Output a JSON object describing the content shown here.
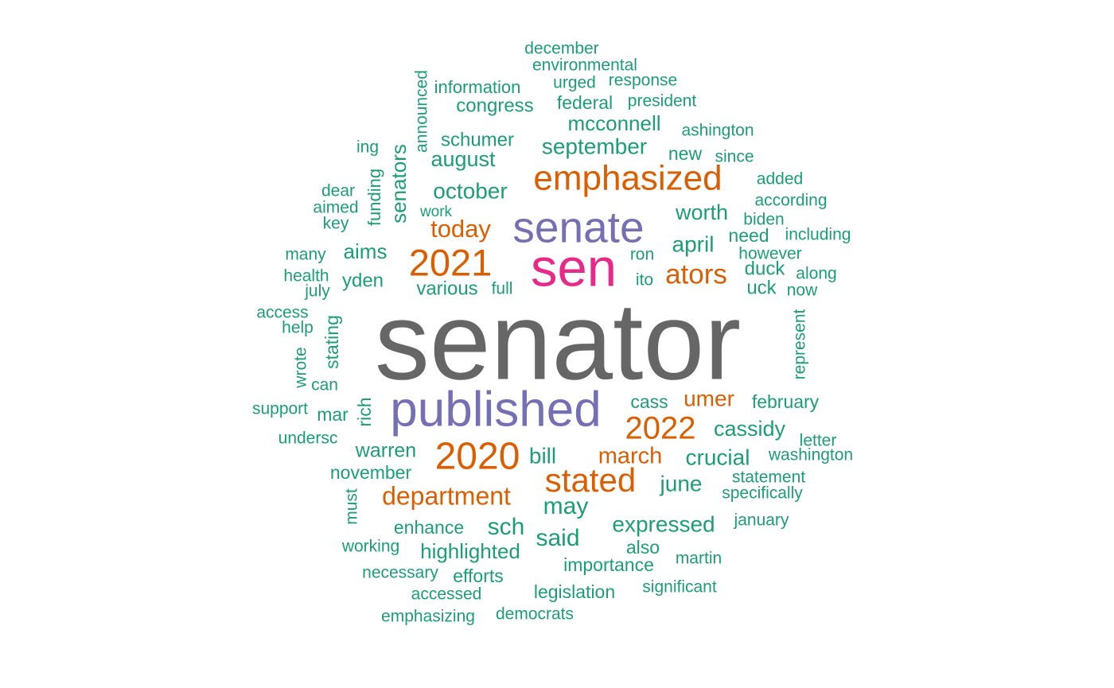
{
  "chart_data": {
    "type": "wordcloud",
    "title": "",
    "colors": {
      "top": "#666666",
      "second": "#e7298a",
      "third": "#7570b3",
      "fourth": "#d95f02",
      "rest": "#1b9e77"
    },
    "words": [
      {
        "text": "senator",
        "color": "#666666",
        "tier": 1
      },
      {
        "text": "sen",
        "color": "#e7298a",
        "tier": 2
      },
      {
        "text": "senate",
        "color": "#7570b3",
        "tier": 3
      },
      {
        "text": "published",
        "color": "#7570b3",
        "tier": 3
      },
      {
        "text": "emphasized",
        "color": "#d95f02",
        "tier": 4
      },
      {
        "text": "2021",
        "color": "#d95f02",
        "tier": 4
      },
      {
        "text": "2020",
        "color": "#d95f02",
        "tier": 4
      },
      {
        "text": "stated",
        "color": "#d95f02",
        "tier": 4
      },
      {
        "text": "2022",
        "color": "#d95f02",
        "tier": 4
      },
      {
        "text": "ators",
        "color": "#d95f02",
        "tier": 4
      },
      {
        "text": "department",
        "color": "#d95f02",
        "tier": 4
      },
      {
        "text": "today",
        "color": "#d95f02",
        "tier": 4
      },
      {
        "text": "march",
        "color": "#d95f02",
        "tier": 4
      },
      {
        "text": "umer",
        "color": "#d95f02",
        "tier": 4
      },
      {
        "text": "september",
        "color": "#1b9e77",
        "tier": 5
      },
      {
        "text": "october",
        "color": "#1b9e77",
        "tier": 5
      },
      {
        "text": "senators",
        "color": "#1b9e77",
        "tier": 5
      },
      {
        "text": "april",
        "color": "#1b9e77",
        "tier": 5
      },
      {
        "text": "worth",
        "color": "#1b9e77",
        "tier": 5
      },
      {
        "text": "expressed",
        "color": "#1b9e77",
        "tier": 5
      },
      {
        "text": "may",
        "color": "#1b9e77",
        "tier": 5
      },
      {
        "text": "sch",
        "color": "#1b9e77",
        "tier": 5
      },
      {
        "text": "said",
        "color": "#1b9e77",
        "tier": 5
      },
      {
        "text": "june",
        "color": "#1b9e77",
        "tier": 5
      },
      {
        "text": "crucial",
        "color": "#1b9e77",
        "tier": 5
      },
      {
        "text": "bill",
        "color": "#1b9e77",
        "tier": 5
      },
      {
        "text": "cassidy",
        "color": "#1b9e77",
        "tier": 5
      },
      {
        "text": "august",
        "color": "#1b9e77",
        "tier": 5
      },
      {
        "text": "mcconnell",
        "color": "#1b9e77",
        "tier": 5
      },
      {
        "text": "aims",
        "color": "#1b9e77",
        "tier": 5
      },
      {
        "text": "warren",
        "color": "#1b9e77",
        "tier": 5
      },
      {
        "text": "highlighted",
        "color": "#1b9e77",
        "tier": 5
      },
      {
        "text": "various",
        "color": "#1b9e77",
        "tier": 6
      },
      {
        "text": "congress",
        "color": "#1b9e77",
        "tier": 6
      },
      {
        "text": "schumer",
        "color": "#1b9e77",
        "tier": 6
      },
      {
        "text": "yden",
        "color": "#1b9e77",
        "tier": 6
      },
      {
        "text": "duck",
        "color": "#1b9e77",
        "tier": 6
      },
      {
        "text": "uck",
        "color": "#1b9e77",
        "tier": 6
      },
      {
        "text": "federal",
        "color": "#1b9e77",
        "tier": 6
      },
      {
        "text": "november",
        "color": "#1b9e77",
        "tier": 6
      },
      {
        "text": "february",
        "color": "#1b9e77",
        "tier": 6
      },
      {
        "text": "importance",
        "color": "#1b9e77",
        "tier": 6
      },
      {
        "text": "legislation",
        "color": "#1b9e77",
        "tier": 6
      },
      {
        "text": "enhance",
        "color": "#1b9e77",
        "tier": 6
      },
      {
        "text": "efforts",
        "color": "#1b9e77",
        "tier": 6
      },
      {
        "text": "stating",
        "color": "#1b9e77",
        "tier": 6
      },
      {
        "text": "rich",
        "color": "#1b9e77",
        "tier": 6
      },
      {
        "text": "cass",
        "color": "#1b9e77",
        "tier": 6
      },
      {
        "text": "need",
        "color": "#1b9e77",
        "tier": 6
      },
      {
        "text": "new",
        "color": "#1b9e77",
        "tier": 6
      },
      {
        "text": "also",
        "color": "#1b9e77",
        "tier": 6
      },
      {
        "text": "mar",
        "color": "#1b9e77",
        "tier": 6
      },
      {
        "text": "funding",
        "color": "#1b9e77",
        "tier": 7
      },
      {
        "text": "announced",
        "color": "#1b9e77",
        "tier": 7
      },
      {
        "text": "information",
        "color": "#1b9e77",
        "tier": 7
      },
      {
        "text": "urged",
        "color": "#1b9e77",
        "tier": 7
      },
      {
        "text": "response",
        "color": "#1b9e77",
        "tier": 7
      },
      {
        "text": "environmental",
        "color": "#1b9e77",
        "tier": 7
      },
      {
        "text": "december",
        "color": "#1b9e77",
        "tier": 7
      },
      {
        "text": "president",
        "color": "#1b9e77",
        "tier": 7
      },
      {
        "text": "ashington",
        "color": "#1b9e77",
        "tier": 7
      },
      {
        "text": "since",
        "color": "#1b9e77",
        "tier": 7
      },
      {
        "text": "added",
        "color": "#1b9e77",
        "tier": 7
      },
      {
        "text": "according",
        "color": "#1b9e77",
        "tier": 7
      },
      {
        "text": "biden",
        "color": "#1b9e77",
        "tier": 7
      },
      {
        "text": "including",
        "color": "#1b9e77",
        "tier": 7
      },
      {
        "text": "however",
        "color": "#1b9e77",
        "tier": 7
      },
      {
        "text": "along",
        "color": "#1b9e77",
        "tier": 7
      },
      {
        "text": "now",
        "color": "#1b9e77",
        "tier": 7
      },
      {
        "text": "ron",
        "color": "#1b9e77",
        "tier": 7
      },
      {
        "text": "ito",
        "color": "#1b9e77",
        "tier": 7
      },
      {
        "text": "full",
        "color": "#1b9e77",
        "tier": 7
      },
      {
        "text": "represent",
        "color": "#1b9e77",
        "tier": 7
      },
      {
        "text": "letter",
        "color": "#1b9e77",
        "tier": 7
      },
      {
        "text": "washington",
        "color": "#1b9e77",
        "tier": 7
      },
      {
        "text": "statement",
        "color": "#1b9e77",
        "tier": 7
      },
      {
        "text": "specifically",
        "color": "#1b9e77",
        "tier": 7
      },
      {
        "text": "january",
        "color": "#1b9e77",
        "tier": 7
      },
      {
        "text": "martin",
        "color": "#1b9e77",
        "tier": 7
      },
      {
        "text": "significant",
        "color": "#1b9e77",
        "tier": 7
      },
      {
        "text": "democrats",
        "color": "#1b9e77",
        "tier": 7
      },
      {
        "text": "emphasizing",
        "color": "#1b9e77",
        "tier": 7
      },
      {
        "text": "accessed",
        "color": "#1b9e77",
        "tier": 7
      },
      {
        "text": "necessary",
        "color": "#1b9e77",
        "tier": 7
      },
      {
        "text": "working",
        "color": "#1b9e77",
        "tier": 7
      },
      {
        "text": "must",
        "color": "#1b9e77",
        "tier": 7
      },
      {
        "text": "undersc",
        "color": "#1b9e77",
        "tier": 7
      },
      {
        "text": "support",
        "color": "#1b9e77",
        "tier": 7
      },
      {
        "text": "can",
        "color": "#1b9e77",
        "tier": 7
      },
      {
        "text": "wrote",
        "color": "#1b9e77",
        "tier": 7
      },
      {
        "text": "help",
        "color": "#1b9e77",
        "tier": 7
      },
      {
        "text": "access",
        "color": "#1b9e77",
        "tier": 7
      },
      {
        "text": "july",
        "color": "#1b9e77",
        "tier": 7
      },
      {
        "text": "health",
        "color": "#1b9e77",
        "tier": 7
      },
      {
        "text": "many",
        "color": "#1b9e77",
        "tier": 7
      },
      {
        "text": "key",
        "color": "#1b9e77",
        "tier": 7
      },
      {
        "text": "aimed",
        "color": "#1b9e77",
        "tier": 7
      },
      {
        "text": "dear",
        "color": "#1b9e77",
        "tier": 7
      },
      {
        "text": "work",
        "color": "#1b9e77",
        "tier": 7
      },
      {
        "text": "ing",
        "color": "#1b9e77",
        "tier": 7
      }
    ]
  }
}
